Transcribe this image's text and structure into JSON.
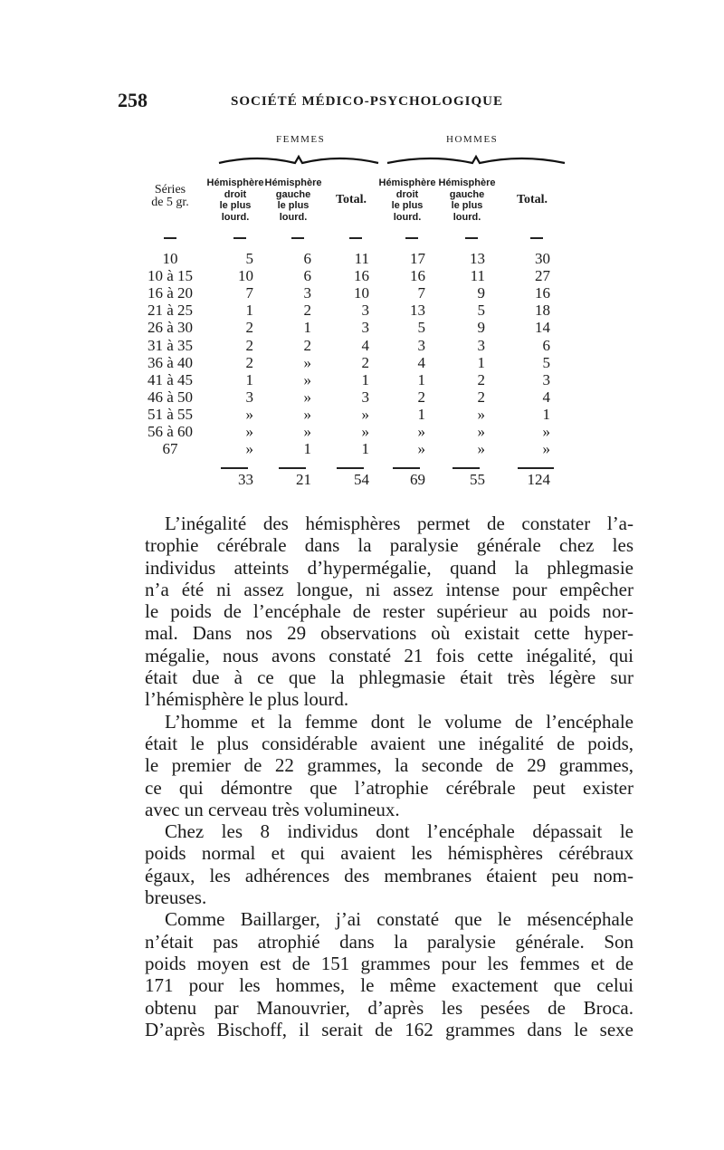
{
  "header": {
    "page_number": "258",
    "running_title": "SOCIÉTÉ MÉDICO-PSYCHOLOGIQUE"
  },
  "table": {
    "groups": [
      "FEMMES",
      "HOMMES"
    ],
    "series_header": [
      "Séries",
      "de 5 gr."
    ],
    "col_headers": {
      "droit": [
        "Hémisphère",
        "droit",
        "le plus",
        "lourd."
      ],
      "gauche": [
        "Hémisphère",
        "gauche",
        "le plus",
        "lourd."
      ],
      "total": "Total."
    },
    "rows": [
      [
        "10",
        "5",
        "6",
        "11",
        "17",
        "13",
        "30"
      ],
      [
        "10 à 15",
        "10",
        "6",
        "16",
        "16",
        "11",
        "27"
      ],
      [
        "16 à 20",
        "7",
        "3",
        "10",
        "7",
        "9",
        "16"
      ],
      [
        "21 à 25",
        "1",
        "2",
        "3",
        "13",
        "5",
        "18"
      ],
      [
        "26 à 30",
        "2",
        "1",
        "3",
        "5",
        "9",
        "14"
      ],
      [
        "31 à 35",
        "2",
        "2",
        "4",
        "3",
        "3",
        "6"
      ],
      [
        "36 à 40",
        "2",
        "»",
        "2",
        "4",
        "1",
        "5"
      ],
      [
        "41 à 45",
        "1",
        "»",
        "1",
        "1",
        "2",
        "3"
      ],
      [
        "46 à 50",
        "3",
        "»",
        "3",
        "2",
        "2",
        "4"
      ],
      [
        "51 à 55",
        "»",
        "»",
        "»",
        "1",
        "»",
        "1"
      ],
      [
        "56 à 60",
        "»",
        "»",
        "»",
        "»",
        "»",
        "»"
      ],
      [
        "67",
        "»",
        "1",
        "1",
        "»",
        "»",
        "»"
      ]
    ],
    "totals": [
      "33",
      "21",
      "54",
      "69",
      "55",
      "124"
    ]
  },
  "body_lines": [
    "L’inégalité des hémisphères permet de constater l’a-",
    "trophie cérébrale dans la paralysie générale chez les",
    "individus atteints d’hypermégalie, quand la phlegmasie",
    "n’a été ni assez longue, ni assez intense pour empêcher",
    "le poids de l’encéphale de rester supérieur au poids nor-",
    "mal. Dans nos 29 observations où existait cette hyper-",
    "mégalie, nous avons constaté 21 fois cette inégalité, qui",
    "était due à ce que la phlegmasie était très légère sur",
    "l’hémisphère le plus lourd.",
    "L’homme et la femme dont le volume de l’encéphale",
    "était le plus considérable avaient une inégalité de poids,",
    "le premier de 22 grammes, la seconde de 29 grammes,",
    "ce qui démontre que l’atrophie cérébrale peut exister",
    "avec un cerveau très volumineux.",
    "Chez les 8 individus dont l’encéphale dépassait le",
    "poids normal et qui avaient les hémisphères cérébraux",
    "égaux, les adhérences des membranes étaient peu nom-",
    "breuses.",
    "Comme Baillarger, j’ai constaté que le mésencéphale",
    "n’était pas atrophié dans la paralysie générale. Son",
    "poids moyen est de 151 grammes pour les femmes et de",
    "171 pour les hommes, le même exactement que celui",
    "obtenu par Manouvrier, d’après les pesées de Broca.",
    "D’après Bischoff, il serait de 162 grammes dans le sexe"
  ]
}
